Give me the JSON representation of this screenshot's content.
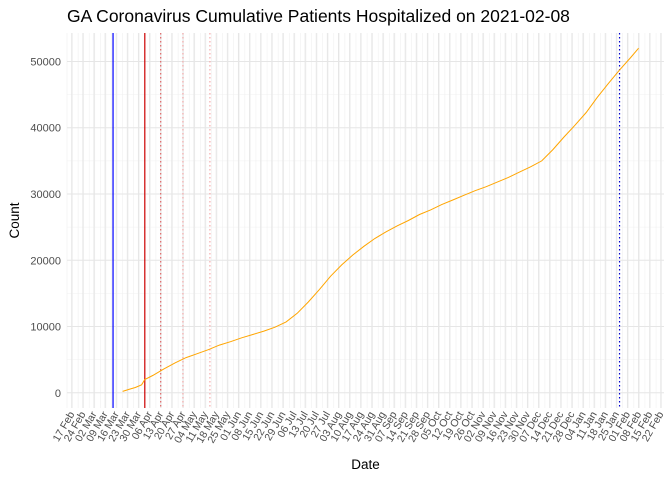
{
  "chart_data": {
    "type": "line",
    "title": "GA Coronavirus Cumulative Patients Hospitalized on 2021-02-08",
    "xlabel": "Date",
    "ylabel": "Count",
    "ylim": [
      -2300,
      54300
    ],
    "xlim": [
      "2020-02-14",
      "2021-02-24"
    ],
    "y_ticks": [
      0,
      10000,
      20000,
      30000,
      40000,
      50000
    ],
    "y_tick_labels": [
      "0",
      "10000",
      "20000",
      "30000",
      "40000",
      "50000"
    ],
    "x_tick_dates": [
      "2020-02-17",
      "2020-02-24",
      "2020-03-02",
      "2020-03-09",
      "2020-03-16",
      "2020-03-23",
      "2020-03-30",
      "2020-04-06",
      "2020-04-13",
      "2020-04-20",
      "2020-04-27",
      "2020-05-04",
      "2020-05-11",
      "2020-05-18",
      "2020-05-25",
      "2020-06-01",
      "2020-06-08",
      "2020-06-15",
      "2020-06-22",
      "2020-06-29",
      "2020-07-06",
      "2020-07-13",
      "2020-07-20",
      "2020-07-27",
      "2020-08-03",
      "2020-08-10",
      "2020-08-17",
      "2020-08-24",
      "2020-08-31",
      "2020-09-07",
      "2020-09-14",
      "2020-09-21",
      "2020-09-28",
      "2020-10-05",
      "2020-10-12",
      "2020-10-19",
      "2020-10-26",
      "2020-11-02",
      "2020-11-09",
      "2020-11-16",
      "2020-11-23",
      "2020-11-30",
      "2020-12-07",
      "2020-12-14",
      "2020-12-21",
      "2020-12-28",
      "2021-01-04",
      "2021-01-11",
      "2021-01-18",
      "2021-01-25",
      "2021-02-01",
      "2021-02-08",
      "2021-02-15",
      "2021-02-22"
    ],
    "x_tick_labels": [
      "17 Feb",
      "24 Feb",
      "02 Mar",
      "09 Mar",
      "16 Mar",
      "23 Mar",
      "30 Mar",
      "06 Apr",
      "13 Apr",
      "20 Apr",
      "27 Apr",
      "04 May",
      "11 May",
      "18 May",
      "25 May",
      "01 Jun",
      "08 Jun",
      "15 Jun",
      "22 Jun",
      "29 Jun",
      "06 Jul",
      "13 Jul",
      "20 Jul",
      "27 Jul",
      "03 Aug",
      "10 Aug",
      "17 Aug",
      "24 Aug",
      "31 Aug",
      "07 Sep",
      "14 Sep",
      "21 Sep",
      "28 Sep",
      "05 Oct",
      "12 Oct",
      "19 Oct",
      "26 Oct",
      "02 Nov",
      "09 Nov",
      "16 Nov",
      "23 Nov",
      "30 Nov",
      "07 Dec",
      "14 Dec",
      "21 Dec",
      "28 Dec",
      "04 Jan",
      "11 Jan",
      "18 Jan",
      "25 Jan",
      "01 Feb",
      "08 Feb",
      "15 Feb",
      "22 Feb"
    ],
    "series": [
      {
        "name": "Cumulative Hospitalized",
        "color": "#FFA500",
        "points": [
          {
            "date": "2020-03-20",
            "value": 200
          },
          {
            "date": "2020-03-24",
            "value": 500
          },
          {
            "date": "2020-03-28",
            "value": 800
          },
          {
            "date": "2020-04-01",
            "value": 1200
          },
          {
            "date": "2020-04-03",
            "value": 2000
          },
          {
            "date": "2020-04-08",
            "value": 2600
          },
          {
            "date": "2020-04-15",
            "value": 3600
          },
          {
            "date": "2020-04-22",
            "value": 4500
          },
          {
            "date": "2020-04-29",
            "value": 5300
          },
          {
            "date": "2020-05-06",
            "value": 5900
          },
          {
            "date": "2020-05-13",
            "value": 6500
          },
          {
            "date": "2020-05-20",
            "value": 7200
          },
          {
            "date": "2020-05-27",
            "value": 7700
          },
          {
            "date": "2020-06-03",
            "value": 8300
          },
          {
            "date": "2020-06-10",
            "value": 8800
          },
          {
            "date": "2020-06-17",
            "value": 9300
          },
          {
            "date": "2020-06-24",
            "value": 9900
          },
          {
            "date": "2020-07-01",
            "value": 10700
          },
          {
            "date": "2020-07-08",
            "value": 12000
          },
          {
            "date": "2020-07-15",
            "value": 13700
          },
          {
            "date": "2020-07-22",
            "value": 15600
          },
          {
            "date": "2020-07-29",
            "value": 17600
          },
          {
            "date": "2020-08-05",
            "value": 19300
          },
          {
            "date": "2020-08-12",
            "value": 20800
          },
          {
            "date": "2020-08-19",
            "value": 22100
          },
          {
            "date": "2020-08-26",
            "value": 23300
          },
          {
            "date": "2020-09-02",
            "value": 24300
          },
          {
            "date": "2020-09-09",
            "value": 25200
          },
          {
            "date": "2020-09-16",
            "value": 26000
          },
          {
            "date": "2020-09-23",
            "value": 26900
          },
          {
            "date": "2020-09-30",
            "value": 27600
          },
          {
            "date": "2020-10-07",
            "value": 28400
          },
          {
            "date": "2020-10-14",
            "value": 29100
          },
          {
            "date": "2020-10-21",
            "value": 29800
          },
          {
            "date": "2020-10-28",
            "value": 30500
          },
          {
            "date": "2020-11-04",
            "value": 31100
          },
          {
            "date": "2020-11-11",
            "value": 31800
          },
          {
            "date": "2020-11-18",
            "value": 32500
          },
          {
            "date": "2020-11-25",
            "value": 33300
          },
          {
            "date": "2020-12-02",
            "value": 34100
          },
          {
            "date": "2020-12-09",
            "value": 35000
          },
          {
            "date": "2020-12-16",
            "value": 36700
          },
          {
            "date": "2020-12-23",
            "value": 38600
          },
          {
            "date": "2020-12-30",
            "value": 40400
          },
          {
            "date": "2021-01-06",
            "value": 42300
          },
          {
            "date": "2021-01-13",
            "value": 44600
          },
          {
            "date": "2021-01-20",
            "value": 46700
          },
          {
            "date": "2021-01-27",
            "value": 48700
          },
          {
            "date": "2021-02-03",
            "value": 50600
          },
          {
            "date": "2021-02-08",
            "value": 52000
          }
        ]
      }
    ],
    "reference_lines": [
      {
        "date": "2020-03-14",
        "color": "#0000FF",
        "style": "solid"
      },
      {
        "date": "2020-04-03",
        "color": "#CC0000",
        "style": "solid"
      },
      {
        "date": "2020-04-13",
        "color": "#E06666",
        "style": "dotted"
      },
      {
        "date": "2020-04-27",
        "color": "#F4AAAA",
        "style": "dotted"
      },
      {
        "date": "2020-05-14",
        "color": "#F4AAAA",
        "style": "dotted"
      },
      {
        "date": "2021-01-27",
        "color": "#0000CC",
        "style": "dotted"
      }
    ],
    "grid": true,
    "legend": "none"
  }
}
